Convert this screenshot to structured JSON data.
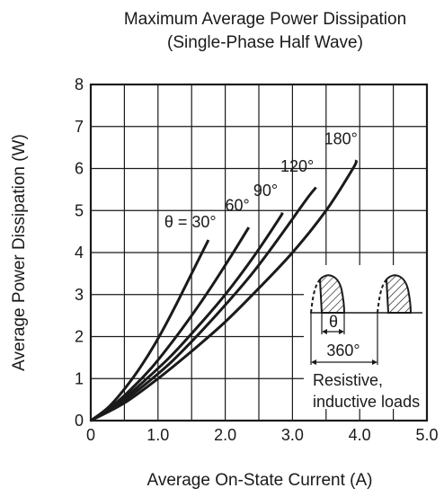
{
  "chart_data": {
    "type": "line",
    "title": "Maximum Average Power Dissipation",
    "subtitle": "(Single-Phase Half Wave)",
    "xlabel": "Average On-State Current  (A)",
    "ylabel": "Average Power Dissipation  (W)",
    "xlim": [
      0,
      5
    ],
    "ylim": [
      0,
      8
    ],
    "grid": true,
    "x_ticks": [
      {
        "value": 0,
        "label": "0"
      },
      {
        "value": 1,
        "label": "1.0"
      },
      {
        "value": 2,
        "label": "2.0"
      },
      {
        "value": 3,
        "label": "3.0"
      },
      {
        "value": 4,
        "label": "4.0"
      },
      {
        "value": 5,
        "label": "5.0"
      }
    ],
    "y_ticks": [
      {
        "value": 0,
        "label": "0"
      },
      {
        "value": 1,
        "label": "1"
      },
      {
        "value": 2,
        "label": "2"
      },
      {
        "value": 3,
        "label": "3"
      },
      {
        "value": 4,
        "label": "4"
      },
      {
        "value": 5,
        "label": "5"
      },
      {
        "value": 6,
        "label": "6"
      },
      {
        "value": 7,
        "label": "7"
      },
      {
        "value": 8,
        "label": "8"
      }
    ],
    "series": [
      {
        "name": "θ = 30°",
        "label_at": [
          1.48,
          4.6
        ],
        "points": [
          [
            0,
            0
          ],
          [
            0.25,
            0.3
          ],
          [
            0.5,
            0.75
          ],
          [
            0.75,
            1.3
          ],
          [
            1.0,
            1.95
          ],
          [
            1.25,
            2.7
          ],
          [
            1.5,
            3.5
          ],
          [
            1.75,
            4.3
          ]
        ]
      },
      {
        "name": "60°",
        "label_at": [
          2.18,
          5.0
        ],
        "points": [
          [
            0,
            0
          ],
          [
            0.3,
            0.32
          ],
          [
            0.6,
            0.75
          ],
          [
            0.9,
            1.25
          ],
          [
            1.2,
            1.85
          ],
          [
            1.5,
            2.5
          ],
          [
            1.8,
            3.2
          ],
          [
            2.1,
            3.95
          ],
          [
            2.35,
            4.6
          ]
        ]
      },
      {
        "name": "90°",
        "label_at": [
          2.6,
          5.35
        ],
        "points": [
          [
            0,
            0
          ],
          [
            0.4,
            0.4
          ],
          [
            0.8,
            0.95
          ],
          [
            1.2,
            1.55
          ],
          [
            1.6,
            2.25
          ],
          [
            2.0,
            3.0
          ],
          [
            2.4,
            3.85
          ],
          [
            2.8,
            4.8
          ],
          [
            2.85,
            4.95
          ]
        ]
      },
      {
        "name": "120°",
        "label_at": [
          3.07,
          5.92
        ],
        "points": [
          [
            0,
            0
          ],
          [
            0.4,
            0.37
          ],
          [
            0.8,
            0.85
          ],
          [
            1.2,
            1.4
          ],
          [
            1.6,
            2.05
          ],
          [
            2.0,
            2.75
          ],
          [
            2.4,
            3.5
          ],
          [
            2.8,
            4.35
          ],
          [
            3.2,
            5.25
          ],
          [
            3.35,
            5.55
          ]
        ]
      },
      {
        "name": "180°",
        "label_at": [
          3.72,
          6.58
        ],
        "points": [
          [
            0,
            0
          ],
          [
            0.5,
            0.42
          ],
          [
            1.0,
            1.0
          ],
          [
            1.5,
            1.65
          ],
          [
            2.0,
            2.35
          ],
          [
            2.5,
            3.15
          ],
          [
            3.0,
            4.0
          ],
          [
            3.5,
            5.0
          ],
          [
            3.9,
            6.0
          ],
          [
            3.95,
            6.2
          ]
        ]
      }
    ],
    "inset": {
      "theta_label": "θ",
      "period_label": "360°",
      "note_line1": "Resistive,",
      "note_line2": "inductive loads"
    }
  }
}
